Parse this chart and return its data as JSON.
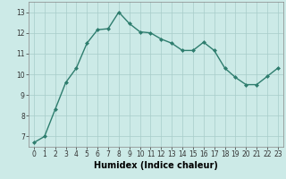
{
  "x": [
    0,
    1,
    2,
    3,
    4,
    5,
    6,
    7,
    8,
    9,
    10,
    11,
    12,
    13,
    14,
    15,
    16,
    17,
    18,
    19,
    20,
    21,
    22,
    23
  ],
  "y": [
    6.7,
    7.0,
    8.3,
    9.6,
    10.3,
    11.5,
    12.15,
    12.2,
    13.0,
    12.45,
    12.05,
    12.0,
    11.7,
    11.5,
    11.15,
    11.15,
    11.55,
    11.15,
    10.3,
    9.85,
    9.5,
    9.5,
    9.9,
    10.3
  ],
  "line_color": "#2e7d6e",
  "marker": "D",
  "marker_size": 2.0,
  "bg_color": "#cceae7",
  "grid_color": "#a8ccc9",
  "xlabel": "Humidex (Indice chaleur)",
  "xlim": [
    -0.5,
    23.5
  ],
  "ylim": [
    6.5,
    13.5
  ],
  "yticks": [
    7,
    8,
    9,
    10,
    11,
    12,
    13
  ],
  "xticks": [
    0,
    1,
    2,
    3,
    4,
    5,
    6,
    7,
    8,
    9,
    10,
    11,
    12,
    13,
    14,
    15,
    16,
    17,
    18,
    19,
    20,
    21,
    22,
    23
  ],
  "tick_fontsize": 5.5,
  "xlabel_fontsize": 7.0,
  "line_width": 1.0
}
